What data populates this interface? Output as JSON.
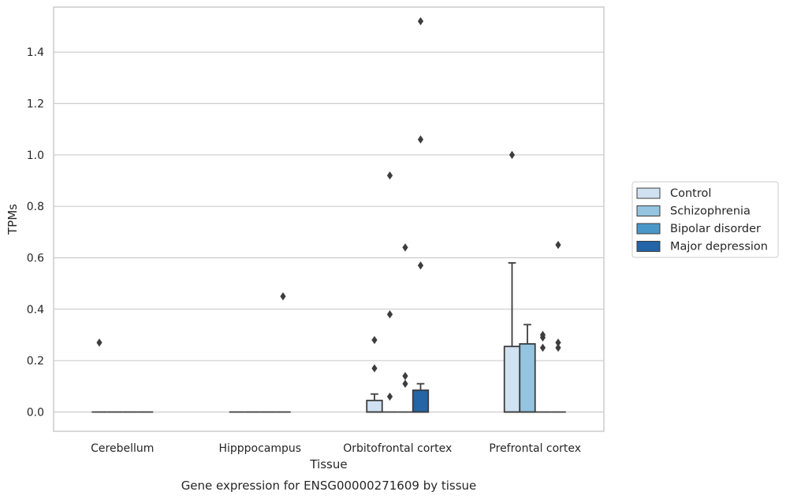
{
  "chart_data": {
    "type": "boxplot",
    "caption": "Gene expression for ENSG00000271609 by tissue",
    "xlabel": "Tissue",
    "ylabel": "TPMs",
    "ylim": [
      -0.075,
      1.575
    ],
    "yticks": [
      0.0,
      0.2,
      0.4,
      0.6,
      0.8,
      1.0,
      1.2,
      1.4
    ],
    "ytick_labels": [
      "0.0",
      "0.2",
      "0.4",
      "0.6",
      "0.8",
      "1.0",
      "1.2",
      "1.4"
    ],
    "categories": [
      "Cerebellum",
      "Hipppocampus",
      "Orbitofrontal cortex",
      "Prefrontal cortex"
    ],
    "grid": "horizontal",
    "legend_position": "right",
    "series": [
      {
        "name": "Control",
        "color": "#d0e1f2",
        "boxes": [
          {
            "q1": 0,
            "median": 0,
            "q3": 0,
            "whisker_low": 0,
            "whisker_high": 0,
            "outliers": [
              0.27
            ]
          },
          {
            "q1": 0,
            "median": 0,
            "q3": 0,
            "whisker_low": 0,
            "whisker_high": 0,
            "outliers": []
          },
          {
            "q1": 0,
            "median": 0,
            "q3": 0.045,
            "whisker_low": 0,
            "whisker_high": 0.07,
            "outliers": [
              0.17,
              0.28
            ]
          },
          {
            "q1": 0,
            "median": 0,
            "q3": 0.255,
            "whisker_low": 0,
            "whisker_high": 0.58,
            "outliers": [
              1.0
            ]
          }
        ]
      },
      {
        "name": "Schizophrenia",
        "color": "#94c4df",
        "boxes": [
          {
            "q1": 0,
            "median": 0,
            "q3": 0,
            "whisker_low": 0,
            "whisker_high": 0,
            "outliers": []
          },
          {
            "q1": 0,
            "median": 0,
            "q3": 0,
            "whisker_low": 0,
            "whisker_high": 0,
            "outliers": []
          },
          {
            "q1": 0,
            "median": 0,
            "q3": 0,
            "whisker_low": 0,
            "whisker_high": 0,
            "outliers": [
              0.06,
              0.38,
              0.92
            ]
          },
          {
            "q1": 0,
            "median": 0,
            "q3": 0.265,
            "whisker_low": 0,
            "whisker_high": 0.34,
            "outliers": []
          }
        ]
      },
      {
        "name": "Bipolar disorder",
        "color": "#4a98c9",
        "boxes": [
          {
            "q1": 0,
            "median": 0,
            "q3": 0,
            "whisker_low": 0,
            "whisker_high": 0,
            "outliers": []
          },
          {
            "q1": 0,
            "median": 0,
            "q3": 0,
            "whisker_low": 0,
            "whisker_high": 0,
            "outliers": []
          },
          {
            "q1": 0,
            "median": 0,
            "q3": 0,
            "whisker_low": 0,
            "whisker_high": 0,
            "outliers": [
              0.11,
              0.14,
              0.64
            ]
          },
          {
            "q1": 0,
            "median": 0,
            "q3": 0,
            "whisker_low": 0,
            "whisker_high": 0,
            "outliers": [
              0.25,
              0.29,
              0.3
            ]
          }
        ]
      },
      {
        "name": "Major depression",
        "color": "#2365a6",
        "boxes": [
          {
            "q1": 0,
            "median": 0,
            "q3": 0,
            "whisker_low": 0,
            "whisker_high": 0,
            "outliers": []
          },
          {
            "q1": 0,
            "median": 0,
            "q3": 0,
            "whisker_low": 0,
            "whisker_high": 0,
            "outliers": [
              0.45
            ]
          },
          {
            "q1": 0,
            "median": 0,
            "q3": 0.085,
            "whisker_low": 0,
            "whisker_high": 0.11,
            "outliers": [
              0.57,
              1.06,
              1.52
            ]
          },
          {
            "q1": 0,
            "median": 0,
            "q3": 0,
            "whisker_low": 0,
            "whisker_high": 0,
            "outliers": [
              0.25,
              0.27,
              0.65
            ]
          }
        ]
      }
    ]
  }
}
